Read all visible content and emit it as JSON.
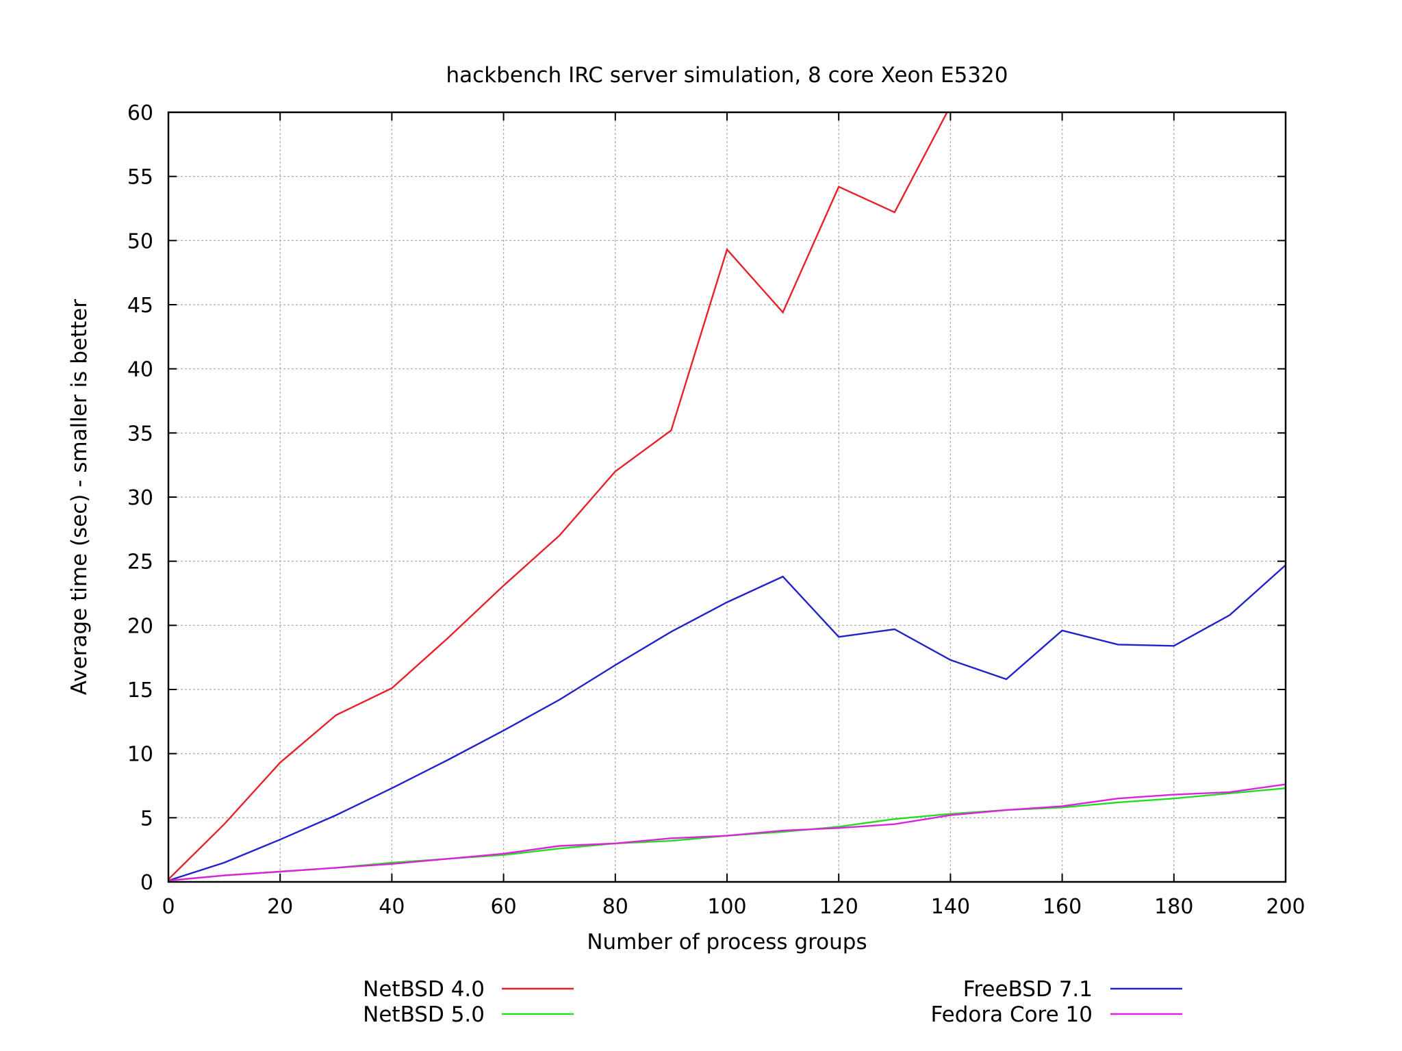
{
  "chart_data": {
    "type": "line",
    "title": "hackbench IRC server simulation, 8 core Xeon E5320",
    "xlabel": "Number of process groups",
    "ylabel": "Average time (sec) - smaller is better",
    "xlim": [
      0,
      200
    ],
    "ylim": [
      0,
      60
    ],
    "xticks": [
      0,
      20,
      40,
      60,
      80,
      100,
      120,
      140,
      160,
      180,
      200
    ],
    "yticks": [
      0,
      5,
      10,
      15,
      20,
      25,
      30,
      35,
      40,
      45,
      50,
      55,
      60
    ],
    "grid": true,
    "legend_position": "bottom",
    "x": [
      0,
      10,
      20,
      30,
      40,
      50,
      60,
      70,
      80,
      90,
      100,
      110,
      120,
      130,
      140,
      150,
      160,
      170,
      180,
      190,
      200
    ],
    "series": [
      {
        "name": "NetBSD 4.0",
        "color": "#e8202a",
        "values": [
          0.2,
          4.5,
          9.3,
          13.0,
          15.1,
          19.0,
          23.1,
          27.0,
          32.0,
          35.2,
          49.3,
          44.4,
          54.2,
          52.2,
          60.5,
          null,
          null,
          null,
          null,
          null,
          null
        ]
      },
      {
        "name": "NetBSD 5.0",
        "color": "#22dd22",
        "values": [
          0.1,
          0.5,
          0.8,
          1.1,
          1.5,
          1.8,
          2.1,
          2.6,
          3.0,
          3.2,
          3.6,
          3.9,
          4.3,
          4.9,
          5.3,
          5.6,
          5.8,
          6.2,
          6.5,
          6.9,
          7.3
        ]
      },
      {
        "name": "FreeBSD 7.1",
        "color": "#2222cc",
        "values": [
          0.1,
          1.5,
          3.3,
          5.2,
          7.3,
          9.5,
          11.8,
          14.2,
          16.9,
          19.5,
          21.8,
          23.8,
          19.1,
          19.7,
          17.3,
          15.8,
          19.6,
          18.5,
          18.4,
          20.8,
          24.7
        ]
      },
      {
        "name": "Fedora Core 10",
        "color": "#dd22dd",
        "values": [
          0.1,
          0.5,
          0.8,
          1.1,
          1.4,
          1.8,
          2.2,
          2.8,
          3.0,
          3.4,
          3.6,
          4.0,
          4.2,
          4.5,
          5.2,
          5.6,
          5.9,
          6.5,
          6.8,
          7.0,
          7.6
        ]
      }
    ]
  }
}
